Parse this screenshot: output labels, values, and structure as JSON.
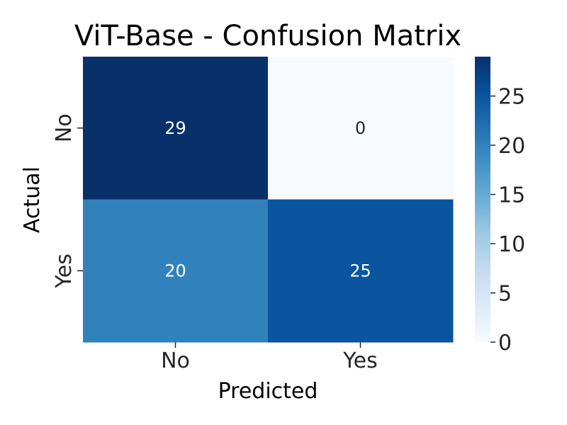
{
  "chart_data": {
    "type": "heatmap",
    "title": "ViT-Base - Confusion Matrix",
    "xlabel": "Predicted",
    "ylabel": "Actual",
    "x_categories": [
      "No",
      "Yes"
    ],
    "y_categories": [
      "No",
      "Yes"
    ],
    "values": [
      [
        29,
        0
      ],
      [
        20,
        25
      ]
    ],
    "vmin": 0,
    "vmax": 29,
    "colorbar_ticks": [
      0,
      5,
      10,
      15,
      20,
      25
    ],
    "colorbar_tick_labels": [
      "0",
      "5",
      "10",
      "15",
      "20",
      "25"
    ],
    "colormap": "Blues",
    "colormap_stops": [
      "#f7fbff",
      "#deebf7",
      "#c6dbef",
      "#9ecae1",
      "#6baed6",
      "#4292c6",
      "#2171b5",
      "#08519c",
      "#08306b"
    ],
    "annotation_light_color": "#ffffff",
    "annotation_dark_color": "#262626",
    "text_color": "#262626",
    "grid": false
  }
}
